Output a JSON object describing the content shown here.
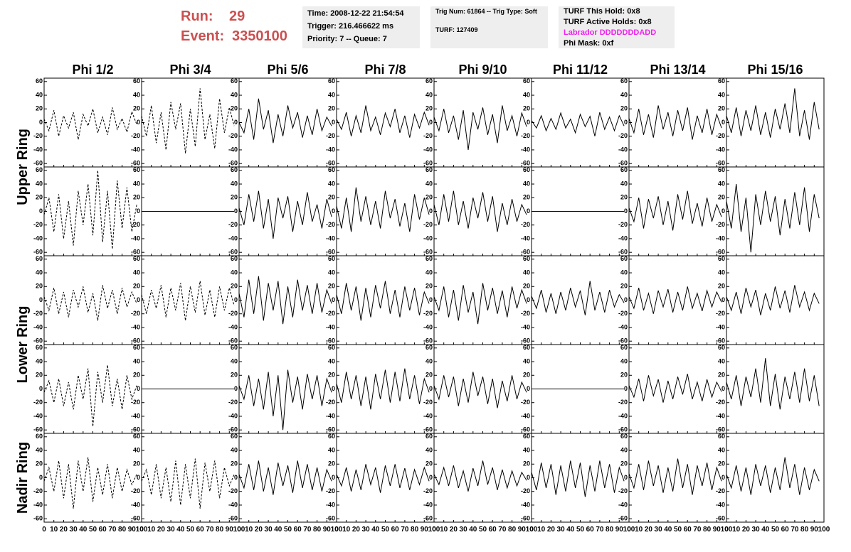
{
  "header": {
    "run_label": "Run:",
    "run": "29",
    "event_label": "Event:",
    "event": "3350100"
  },
  "info_boxes": [
    [
      "Time: 2008-12-22 21:54:54",
      "Trigger: 216.466622 ms",
      "Priority: 7 -- Queue: 7"
    ],
    [
      "Trig Num: 61864 -- Trig Type: Soft",
      "TURF: 127409"
    ],
    [
      "TURF This Hold: 0x8",
      "TURF Active Holds: 0x8",
      "Labrador DDDDDDDADD",
      "Phi Mask: 0xf"
    ]
  ],
  "chart_data": {
    "type": "line",
    "column_titles": [
      "Phi 1/2",
      "Phi 3/4",
      "Phi 5/6",
      "Phi 7/8",
      "Phi 9/10",
      "Phi 11/12",
      "Phi 13/14",
      "Phi 15/16"
    ],
    "row_titles": [
      "Upper Ring",
      "Lower Ring",
      "Nadir Ring"
    ],
    "color": "#000000",
    "x": [
      0,
      5,
      10,
      15,
      20,
      25,
      30,
      35,
      40,
      45,
      50,
      55,
      60,
      65,
      70,
      75,
      80,
      85,
      90,
      95
    ],
    "xlim": [
      0,
      100
    ],
    "xticks": [
      0,
      10,
      20,
      30,
      40,
      50,
      60,
      70,
      80,
      90,
      100
    ],
    "ylim": [
      -65,
      65
    ],
    "yticks": [
      -60,
      -40,
      -20,
      0,
      20,
      40,
      60
    ],
    "panels": [
      [
        {
          "style": "dashed",
          "values": [
            5,
            -12,
            18,
            -20,
            10,
            -8,
            15,
            -25,
            12,
            -5,
            20,
            -15,
            8,
            -18,
            22,
            -10,
            6,
            -14,
            16,
            -3
          ]
        },
        {
          "style": "dashed",
          "values": [
            10,
            -20,
            25,
            -30,
            15,
            -40,
            30,
            -10,
            28,
            -45,
            20,
            -35,
            50,
            -25,
            12,
            -38,
            35,
            -15,
            22,
            -5
          ]
        },
        {
          "style": "solid",
          "values": [
            0,
            -15,
            20,
            -25,
            35,
            -10,
            18,
            -30,
            12,
            -20,
            25,
            -8,
            15,
            -22,
            10,
            -18,
            20,
            -12,
            8,
            -5
          ]
        },
        {
          "style": "solid",
          "values": [
            5,
            -10,
            15,
            -20,
            10,
            -15,
            25,
            -12,
            8,
            -18,
            14,
            -6,
            20,
            -15,
            10,
            -22,
            12,
            -8,
            15,
            -4
          ]
        },
        {
          "style": "solid",
          "values": [
            8,
            -12,
            20,
            -15,
            10,
            -25,
            18,
            -40,
            15,
            -10,
            22,
            -18,
            12,
            -30,
            25,
            -12,
            10,
            -20,
            14,
            -6
          ]
        },
        {
          "style": "solid",
          "values": [
            3,
            -8,
            10,
            -12,
            6,
            -10,
            14,
            -8,
            5,
            -15,
            12,
            -6,
            9,
            -20,
            15,
            -10,
            8,
            -12,
            10,
            -5
          ]
        },
        {
          "style": "solid",
          "values": [
            6,
            -15,
            20,
            -18,
            12,
            -22,
            25,
            -10,
            15,
            -20,
            18,
            -12,
            22,
            -25,
            10,
            -15,
            20,
            -18,
            12,
            -8
          ]
        },
        {
          "style": "solid",
          "values": [
            10,
            -15,
            22,
            -20,
            18,
            -12,
            25,
            -18,
            15,
            -22,
            20,
            -10,
            28,
            -15,
            50,
            -20,
            18,
            -25,
            30,
            -10
          ]
        }
      ],
      [
        {
          "style": "dashed",
          "values": [
            -5,
            20,
            -30,
            25,
            -40,
            15,
            -50,
            30,
            -20,
            40,
            -35,
            60,
            -45,
            30,
            -55,
            45,
            -25,
            35,
            -30,
            10
          ]
        },
        {
          "style": "solid",
          "values": [
            0,
            0,
            0,
            0,
            0,
            0,
            0,
            0,
            0,
            0,
            0,
            0,
            0,
            0,
            0,
            0,
            0,
            0,
            0,
            0
          ]
        },
        {
          "style": "solid",
          "values": [
            5,
            -20,
            25,
            -15,
            30,
            -25,
            18,
            -40,
            20,
            -10,
            22,
            -30,
            15,
            -20,
            28,
            -15,
            10,
            -25,
            18,
            -8
          ]
        },
        {
          "style": "solid",
          "values": [
            8,
            -25,
            20,
            -30,
            35,
            -15,
            22,
            -20,
            15,
            -25,
            30,
            -10,
            18,
            -22,
            12,
            -30,
            25,
            -12,
            20,
            -5
          ]
        },
        {
          "style": "solid",
          "values": [
            10,
            -20,
            25,
            -15,
            30,
            -20,
            15,
            -25,
            20,
            -10,
            28,
            -15,
            22,
            -30,
            12,
            -20,
            18,
            -15,
            10,
            -5
          ]
        },
        {
          "style": "solid",
          "values": [
            0,
            0,
            0,
            0,
            0,
            0,
            0,
            0,
            0,
            0,
            0,
            0,
            0,
            0,
            0,
            0,
            0,
            0,
            0,
            0
          ]
        },
        {
          "style": "solid",
          "values": [
            5,
            -15,
            20,
            -25,
            18,
            -10,
            22,
            -20,
            15,
            -28,
            25,
            -12,
            30,
            -18,
            12,
            -22,
            20,
            -15,
            10,
            -8
          ]
        },
        {
          "style": "solid",
          "values": [
            15,
            -25,
            40,
            -30,
            20,
            -60,
            25,
            -20,
            30,
            -15,
            22,
            -35,
            18,
            -25,
            28,
            -20,
            35,
            -30,
            25,
            -10
          ]
        }
      ],
      [
        {
          "style": "dashed",
          "values": [
            5,
            -15,
            18,
            -20,
            12,
            -25,
            15,
            -10,
            20,
            -18,
            10,
            -30,
            22,
            -12,
            15,
            -20,
            18,
            -10,
            12,
            -5
          ]
        },
        {
          "style": "dashed",
          "values": [
            8,
            -20,
            15,
            -12,
            22,
            -25,
            18,
            -15,
            25,
            -30,
            20,
            -18,
            28,
            -22,
            15,
            -25,
            20,
            -15,
            18,
            -8
          ]
        },
        {
          "style": "solid",
          "values": [
            10,
            -25,
            30,
            -20,
            35,
            -30,
            25,
            -15,
            28,
            -35,
            20,
            -25,
            30,
            -15,
            22,
            -20,
            25,
            -18,
            15,
            -5
          ]
        },
        {
          "style": "solid",
          "values": [
            8,
            -20,
            25,
            -15,
            20,
            -30,
            18,
            -25,
            22,
            -12,
            28,
            -20,
            15,
            -25,
            20,
            -15,
            18,
            -22,
            12,
            -5
          ]
        },
        {
          "style": "solid",
          "values": [
            5,
            -15,
            20,
            -25,
            15,
            -30,
            22,
            -18,
            12,
            -35,
            25,
            -15,
            18,
            -20,
            14,
            -25,
            20,
            -12,
            15,
            -5
          ]
        },
        {
          "style": "solid",
          "values": [
            6,
            -12,
            15,
            -18,
            10,
            -20,
            12,
            -15,
            18,
            -10,
            14,
            -22,
            28,
            -15,
            12,
            -18,
            15,
            -10,
            8,
            -4
          ]
        },
        {
          "style": "solid",
          "values": [
            5,
            -12,
            18,
            -15,
            10,
            -20,
            14,
            -10,
            16,
            -18,
            12,
            -15,
            20,
            -12,
            10,
            -16,
            14,
            -10,
            12,
            -3
          ]
        },
        {
          "style": "solid",
          "values": [
            5,
            -15,
            12,
            -20,
            18,
            -10,
            15,
            -22,
            10,
            -15,
            20,
            -12,
            14,
            -18,
            22,
            -10,
            12,
            -15,
            10,
            -5
          ]
        }
      ],
      [
        {
          "style": "dashed",
          "values": [
            -5,
            12,
            -20,
            15,
            -25,
            10,
            -30,
            20,
            -15,
            30,
            -55,
            25,
            -20,
            35,
            -25,
            15,
            -30,
            20,
            -15,
            5
          ]
        },
        {
          "style": "solid",
          "values": [
            0,
            0,
            0,
            0,
            0,
            0,
            0,
            0,
            0,
            0,
            0,
            0,
            0,
            0,
            0,
            0,
            0,
            0,
            0,
            0
          ]
        },
        {
          "style": "solid",
          "values": [
            5,
            -15,
            20,
            -25,
            15,
            -30,
            25,
            -40,
            20,
            -60,
            28,
            -20,
            18,
            -30,
            22,
            -15,
            20,
            -25,
            15,
            -5
          ]
        },
        {
          "style": "solid",
          "values": [
            8,
            -20,
            25,
            -15,
            20,
            -25,
            18,
            -30,
            22,
            -15,
            28,
            -20,
            25,
            -18,
            30,
            -15,
            20,
            -22,
            15,
            -5
          ]
        },
        {
          "style": "solid",
          "values": [
            5,
            -15,
            20,
            -12,
            18,
            -25,
            15,
            -20,
            25,
            -10,
            18,
            -22,
            15,
            -28,
            12,
            -18,
            20,
            -15,
            10,
            -5
          ]
        },
        {
          "style": "solid",
          "values": [
            0,
            0,
            0,
            0,
            0,
            0,
            0,
            0,
            0,
            0,
            0,
            0,
            0,
            0,
            0,
            0,
            0,
            0,
            0,
            0
          ]
        },
        {
          "style": "solid",
          "values": [
            5,
            -12,
            15,
            -18,
            20,
            -10,
            14,
            -20,
            12,
            -15,
            18,
            -8,
            22,
            -15,
            10,
            -18,
            14,
            -12,
            10,
            -4
          ]
        },
        {
          "style": "solid",
          "values": [
            10,
            -15,
            20,
            -25,
            18,
            -12,
            30,
            -20,
            45,
            -25,
            22,
            -30,
            18,
            -15,
            25,
            -20,
            30,
            -18,
            20,
            -25
          ]
        }
      ],
      [
        {
          "style": "dashed",
          "values": [
            -5,
            15,
            -20,
            25,
            -30,
            20,
            -45,
            25,
            -20,
            30,
            -35,
            15,
            -25,
            20,
            -30,
            15,
            -20,
            12,
            -10,
            5
          ]
        },
        {
          "style": "dashed",
          "values": [
            -5,
            12,
            -25,
            20,
            -30,
            15,
            -35,
            25,
            -40,
            20,
            -30,
            28,
            -45,
            22,
            -20,
            25,
            -30,
            15,
            -12,
            5
          ]
        },
        {
          "style": "solid",
          "values": [
            5,
            -15,
            20,
            -18,
            25,
            -20,
            15,
            -25,
            22,
            -12,
            18,
            -22,
            25,
            -15,
            20,
            -18,
            15,
            -20,
            12,
            -5
          ]
        },
        {
          "style": "solid",
          "values": [
            5,
            -12,
            15,
            -20,
            12,
            -18,
            20,
            -10,
            15,
            -22,
            18,
            -12,
            20,
            -15,
            14,
            -18,
            12,
            -10,
            15,
            -5
          ]
        },
        {
          "style": "solid",
          "values": [
            5,
            -10,
            15,
            -12,
            18,
            -15,
            10,
            -20,
            14,
            -12,
            25,
            -10,
            15,
            -18,
            12,
            -15,
            10,
            -12,
            8,
            -4
          ]
        },
        {
          "style": "solid",
          "values": [
            8,
            -18,
            22,
            -15,
            20,
            -25,
            18,
            -20,
            25,
            -15,
            22,
            -28,
            18,
            -20,
            25,
            -15,
            20,
            -22,
            15,
            -5
          ]
        },
        {
          "style": "solid",
          "values": [
            6,
            -15,
            20,
            -18,
            25,
            -12,
            18,
            -22,
            15,
            -20,
            28,
            -15,
            20,
            -25,
            18,
            -12,
            22,
            -18,
            15,
            -5
          ]
        },
        {
          "style": "solid",
          "values": [
            5,
            -15,
            18,
            -20,
            15,
            -25,
            20,
            -12,
            18,
            -22,
            15,
            -18,
            30,
            -15,
            20,
            -25,
            15,
            -18,
            12,
            -5
          ]
        }
      ]
    ]
  }
}
